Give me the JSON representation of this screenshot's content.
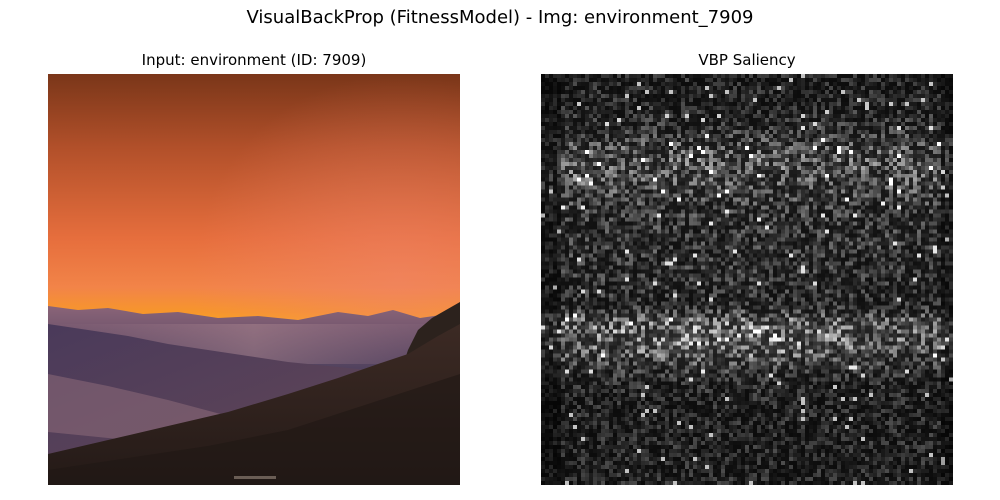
{
  "figure": {
    "title": "VisualBackProp (FitnessModel) - Img: environment_7909"
  },
  "panels": {
    "input": {
      "title": "Input: environment (ID: 7909)"
    },
    "saliency": {
      "title": "VBP Saliency",
      "colormap": "gray"
    }
  },
  "colors": {
    "sky_top": "#7e3a1c",
    "sky_mid": "#e86c3c",
    "horizon_glow": "#ffb21a",
    "mountain_far": "#7b5a78",
    "mountain_mid": "#4d3550",
    "mountain_near": "#2e221e"
  }
}
